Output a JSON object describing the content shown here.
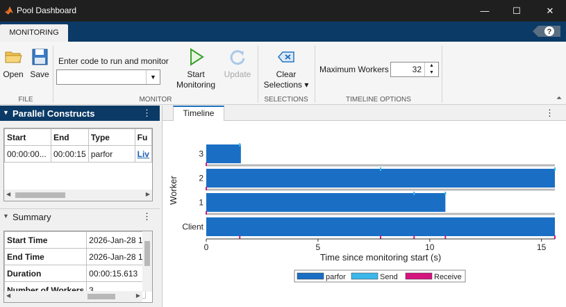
{
  "window": {
    "title": "Pool Dashboard",
    "minimize": "—",
    "maximize": "☐",
    "close": "✕"
  },
  "tabs": {
    "monitoring": "MONITORING",
    "help": "?"
  },
  "toolstrip": {
    "file": {
      "open": "Open",
      "save": "Save",
      "label": "FILE"
    },
    "monitor": {
      "code_label": "Enter code to run and monitor",
      "code_value": "",
      "start_line1": "Start",
      "start_line2": "Monitoring",
      "update": "Update",
      "label": "MONITOR"
    },
    "selections": {
      "clear_line1": "Clear",
      "clear_line2": "Selections ▾",
      "label": "SELECTIONS"
    },
    "timeline_options": {
      "max_workers_label": "Maximum Workers",
      "max_workers_value": "32",
      "label": "TIMELINE OPTIONS"
    }
  },
  "parallel_constructs": {
    "title": "Parallel Constructs",
    "menu": "⋮",
    "columns": [
      "Start",
      "End",
      "Type",
      "Fu"
    ],
    "rows": [
      [
        "00:00:00...",
        "00:00:15",
        "parfor",
        "Liv"
      ]
    ]
  },
  "summary": {
    "title": "Summary",
    "menu": "⋮",
    "rows": [
      {
        "label": "Start Time",
        "value": "2026-Jan-28 1"
      },
      {
        "label": "End Time",
        "value": "2026-Jan-28 1"
      },
      {
        "label": "Duration",
        "value": "00:00:15.613"
      },
      {
        "label": "Number of Workers",
        "value": "3"
      }
    ]
  },
  "timeline": {
    "tab": "Timeline",
    "menu": "⋮",
    "colors": {
      "parfor": "#1a6fc4",
      "send": "#3cb7ea",
      "receive": "#d4157e"
    },
    "legend": [
      "parfor",
      "Send",
      "Receive"
    ]
  },
  "chart_data": {
    "type": "bar",
    "orientation": "horizontal",
    "xlabel": "Time since monitoring start (s)",
    "ylabel": "Worker",
    "xlim": [
      0,
      15.6
    ],
    "xticks": [
      0,
      5,
      10,
      15
    ],
    "categories": [
      "Client",
      "1",
      "2",
      "3"
    ],
    "series": [
      {
        "name": "parfor",
        "bars": [
          {
            "row": "Client",
            "start": 0,
            "end": 15.6
          },
          {
            "row": "1",
            "start": 0,
            "end": 10.7
          },
          {
            "row": "2",
            "start": 0,
            "end": 15.6
          },
          {
            "row": "3",
            "start": 0,
            "end": 1.55
          }
        ]
      },
      {
        "name": "Send",
        "events": [
          {
            "row": "3",
            "t": 1.5
          },
          {
            "row": "2",
            "t": 7.8
          },
          {
            "row": "2",
            "t": 15.6
          },
          {
            "row": "1",
            "t": 9.3
          },
          {
            "row": "1",
            "t": 10.7
          }
        ]
      },
      {
        "name": "Receive",
        "events": [
          {
            "row": "Client",
            "t": 1.5
          },
          {
            "row": "Client",
            "t": 7.8
          },
          {
            "row": "Client",
            "t": 9.3
          },
          {
            "row": "Client",
            "t": 10.7
          },
          {
            "row": "Client",
            "t": 15.6
          },
          {
            "row": "3",
            "t": 0
          },
          {
            "row": "2",
            "t": 0
          },
          {
            "row": "1",
            "t": 0
          }
        ]
      }
    ],
    "legend_position": "bottom"
  }
}
